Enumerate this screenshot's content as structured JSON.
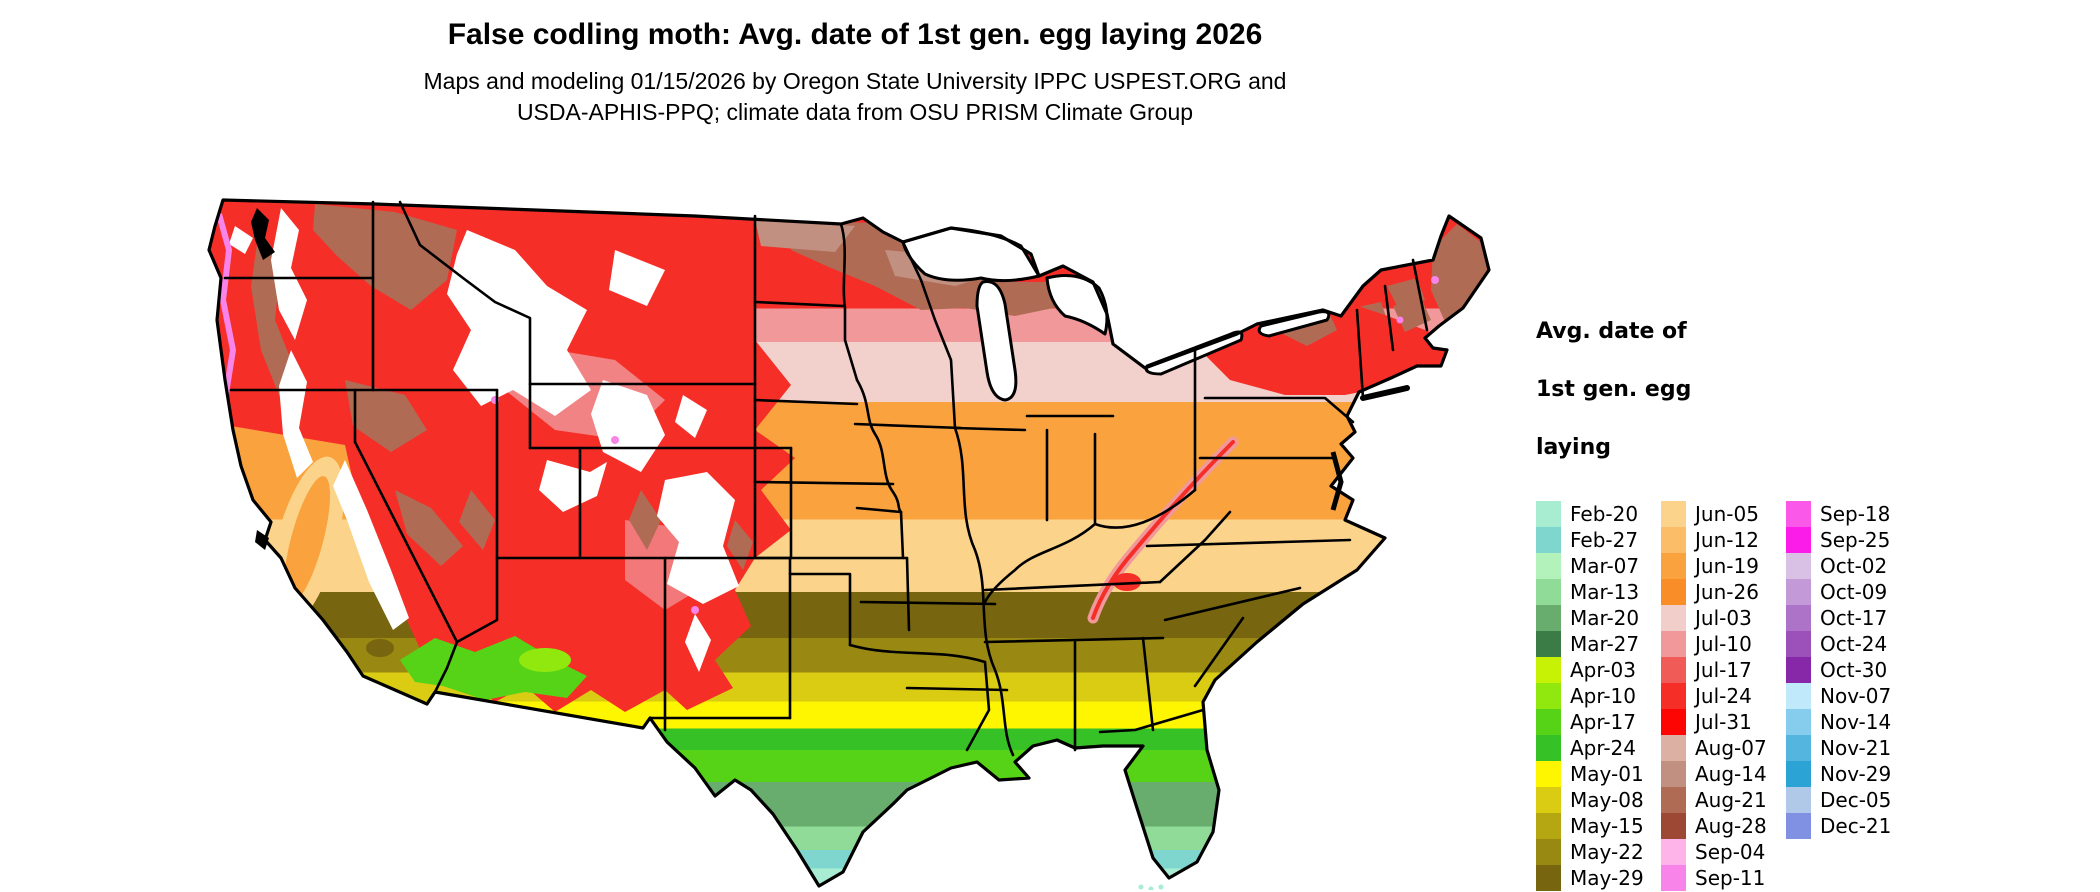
{
  "header": {
    "title": "False codling moth: Avg. date of 1st gen. egg laying 2026",
    "subtitle_line1": "Maps and modeling 01/15/2026 by Oregon State University IPPC USPEST.ORG and",
    "subtitle_line2": "USDA-APHIS-PPQ; climate data from OSU PRISM Climate Group"
  },
  "legend": {
    "title_lines": [
      "Avg. date of",
      "1st gen. egg",
      "laying"
    ],
    "columns": [
      {
        "entries": [
          {
            "label": "Feb-20",
            "color": "#A8EDD2"
          },
          {
            "label": "Feb-27",
            "color": "#7FD6CE"
          },
          {
            "label": "Mar-07",
            "color": "#B4F2BB"
          },
          {
            "label": "Mar-13",
            "color": "#8FDB97"
          },
          {
            "label": "Mar-20",
            "color": "#68AD6E"
          },
          {
            "label": "Mar-27",
            "color": "#3B7B45"
          },
          {
            "label": "Apr-03",
            "color": "#C8F205"
          },
          {
            "label": "Apr-10",
            "color": "#90E80E"
          },
          {
            "label": "Apr-17",
            "color": "#57D317"
          },
          {
            "label": "Apr-24",
            "color": "#36C226"
          },
          {
            "label": "May-01",
            "color": "#FEF501"
          },
          {
            "label": "May-08",
            "color": "#DACC13"
          },
          {
            "label": "May-15",
            "color": "#B4A712"
          },
          {
            "label": "May-22",
            "color": "#988913"
          },
          {
            "label": "May-29",
            "color": "#77660F"
          }
        ]
      },
      {
        "entries": [
          {
            "label": "Jun-05",
            "color": "#FBD38B"
          },
          {
            "label": "Jun-12",
            "color": "#FBBD67"
          },
          {
            "label": "Jun-19",
            "color": "#FAA33E"
          },
          {
            "label": "Jun-26",
            "color": "#F98D27"
          },
          {
            "label": "Jul-03",
            "color": "#F1CEC9"
          },
          {
            "label": "Jul-10",
            "color": "#F1989B"
          },
          {
            "label": "Jul-17",
            "color": "#F05B58"
          },
          {
            "label": "Jul-24",
            "color": "#F62E28"
          },
          {
            "label": "Jul-31",
            "color": "#FC0503"
          },
          {
            "label": "Aug-07",
            "color": "#DCB0A2"
          },
          {
            "label": "Aug-14",
            "color": "#C19081"
          },
          {
            "label": "Aug-21",
            "color": "#B06B55"
          },
          {
            "label": "Aug-28",
            "color": "#9C4834"
          },
          {
            "label": "Sep-04",
            "color": "#FFB4E9"
          },
          {
            "label": "Sep-11",
            "color": "#F984E9"
          }
        ]
      },
      {
        "entries": [
          {
            "label": "Sep-18",
            "color": "#F958E9"
          },
          {
            "label": "Sep-25",
            "color": "#FB1CEA"
          },
          {
            "label": "Oct-02",
            "color": "#D9C0E5"
          },
          {
            "label": "Oct-09",
            "color": "#C39AD7"
          },
          {
            "label": "Oct-17",
            "color": "#AD73C9"
          },
          {
            "label": "Oct-24",
            "color": "#9B51B9"
          },
          {
            "label": "Oct-30",
            "color": "#8728A9"
          },
          {
            "label": "Nov-07",
            "color": "#C0E9FB"
          },
          {
            "label": "Nov-14",
            "color": "#86CCEC"
          },
          {
            "label": "Nov-21",
            "color": "#54B5DF"
          },
          {
            "label": "Nov-29",
            "color": "#2BA3D4"
          },
          {
            "label": "Dec-05",
            "color": "#B0C9E9"
          },
          {
            "label": "Dec-21",
            "color": "#8091E4"
          }
        ]
      }
    ]
  },
  "map": {
    "region": "Continental United States",
    "border_color": "#000000",
    "no_data_color": "#FFFFFF"
  },
  "chart_data": {
    "type": "choropleth_map",
    "title": "False codling moth: Avg. date of 1st gen. egg laying 2026",
    "legend_title": "Avg. date of 1st gen. egg laying",
    "geography": "Continental United States",
    "classes": [
      {
        "label": "Feb-20",
        "color": "#A8EDD2"
      },
      {
        "label": "Feb-27",
        "color": "#7FD6CE"
      },
      {
        "label": "Mar-07",
        "color": "#B4F2BB"
      },
      {
        "label": "Mar-13",
        "color": "#8FDB97"
      },
      {
        "label": "Mar-20",
        "color": "#68AD6E"
      },
      {
        "label": "Mar-27",
        "color": "#3B7B45"
      },
      {
        "label": "Apr-03",
        "color": "#C8F205"
      },
      {
        "label": "Apr-10",
        "color": "#90E80E"
      },
      {
        "label": "Apr-17",
        "color": "#57D317"
      },
      {
        "label": "Apr-24",
        "color": "#36C226"
      },
      {
        "label": "May-01",
        "color": "#FEF501"
      },
      {
        "label": "May-08",
        "color": "#DACC13"
      },
      {
        "label": "May-15",
        "color": "#B4A712"
      },
      {
        "label": "May-22",
        "color": "#988913"
      },
      {
        "label": "May-29",
        "color": "#77660F"
      },
      {
        "label": "Jun-05",
        "color": "#FBD38B"
      },
      {
        "label": "Jun-12",
        "color": "#FBBD67"
      },
      {
        "label": "Jun-19",
        "color": "#FAA33E"
      },
      {
        "label": "Jun-26",
        "color": "#F98D27"
      },
      {
        "label": "Jul-03",
        "color": "#F1CEC9"
      },
      {
        "label": "Jul-10",
        "color": "#F1989B"
      },
      {
        "label": "Jul-17",
        "color": "#F05B58"
      },
      {
        "label": "Jul-24",
        "color": "#F62E28"
      },
      {
        "label": "Jul-31",
        "color": "#FC0503"
      },
      {
        "label": "Aug-07",
        "color": "#DCB0A2"
      },
      {
        "label": "Aug-14",
        "color": "#C19081"
      },
      {
        "label": "Aug-21",
        "color": "#B06B55"
      },
      {
        "label": "Aug-28",
        "color": "#9C4834"
      },
      {
        "label": "Sep-04",
        "color": "#FFB4E9"
      },
      {
        "label": "Sep-11",
        "color": "#F984E9"
      },
      {
        "label": "Sep-18",
        "color": "#F958E9"
      },
      {
        "label": "Sep-25",
        "color": "#FB1CEA"
      },
      {
        "label": "Oct-02",
        "color": "#D9C0E5"
      },
      {
        "label": "Oct-09",
        "color": "#C39AD7"
      },
      {
        "label": "Oct-17",
        "color": "#AD73C9"
      },
      {
        "label": "Oct-24",
        "color": "#9B51B9"
      },
      {
        "label": "Oct-30",
        "color": "#8728A9"
      },
      {
        "label": "Nov-07",
        "color": "#C0E9FB"
      },
      {
        "label": "Nov-14",
        "color": "#86CCEC"
      },
      {
        "label": "Nov-21",
        "color": "#54B5DF"
      },
      {
        "label": "Nov-29",
        "color": "#2BA3D4"
      },
      {
        "label": "Dec-05",
        "color": "#B0C9E9"
      },
      {
        "label": "Dec-21",
        "color": "#8091E4"
      }
    ]
  }
}
